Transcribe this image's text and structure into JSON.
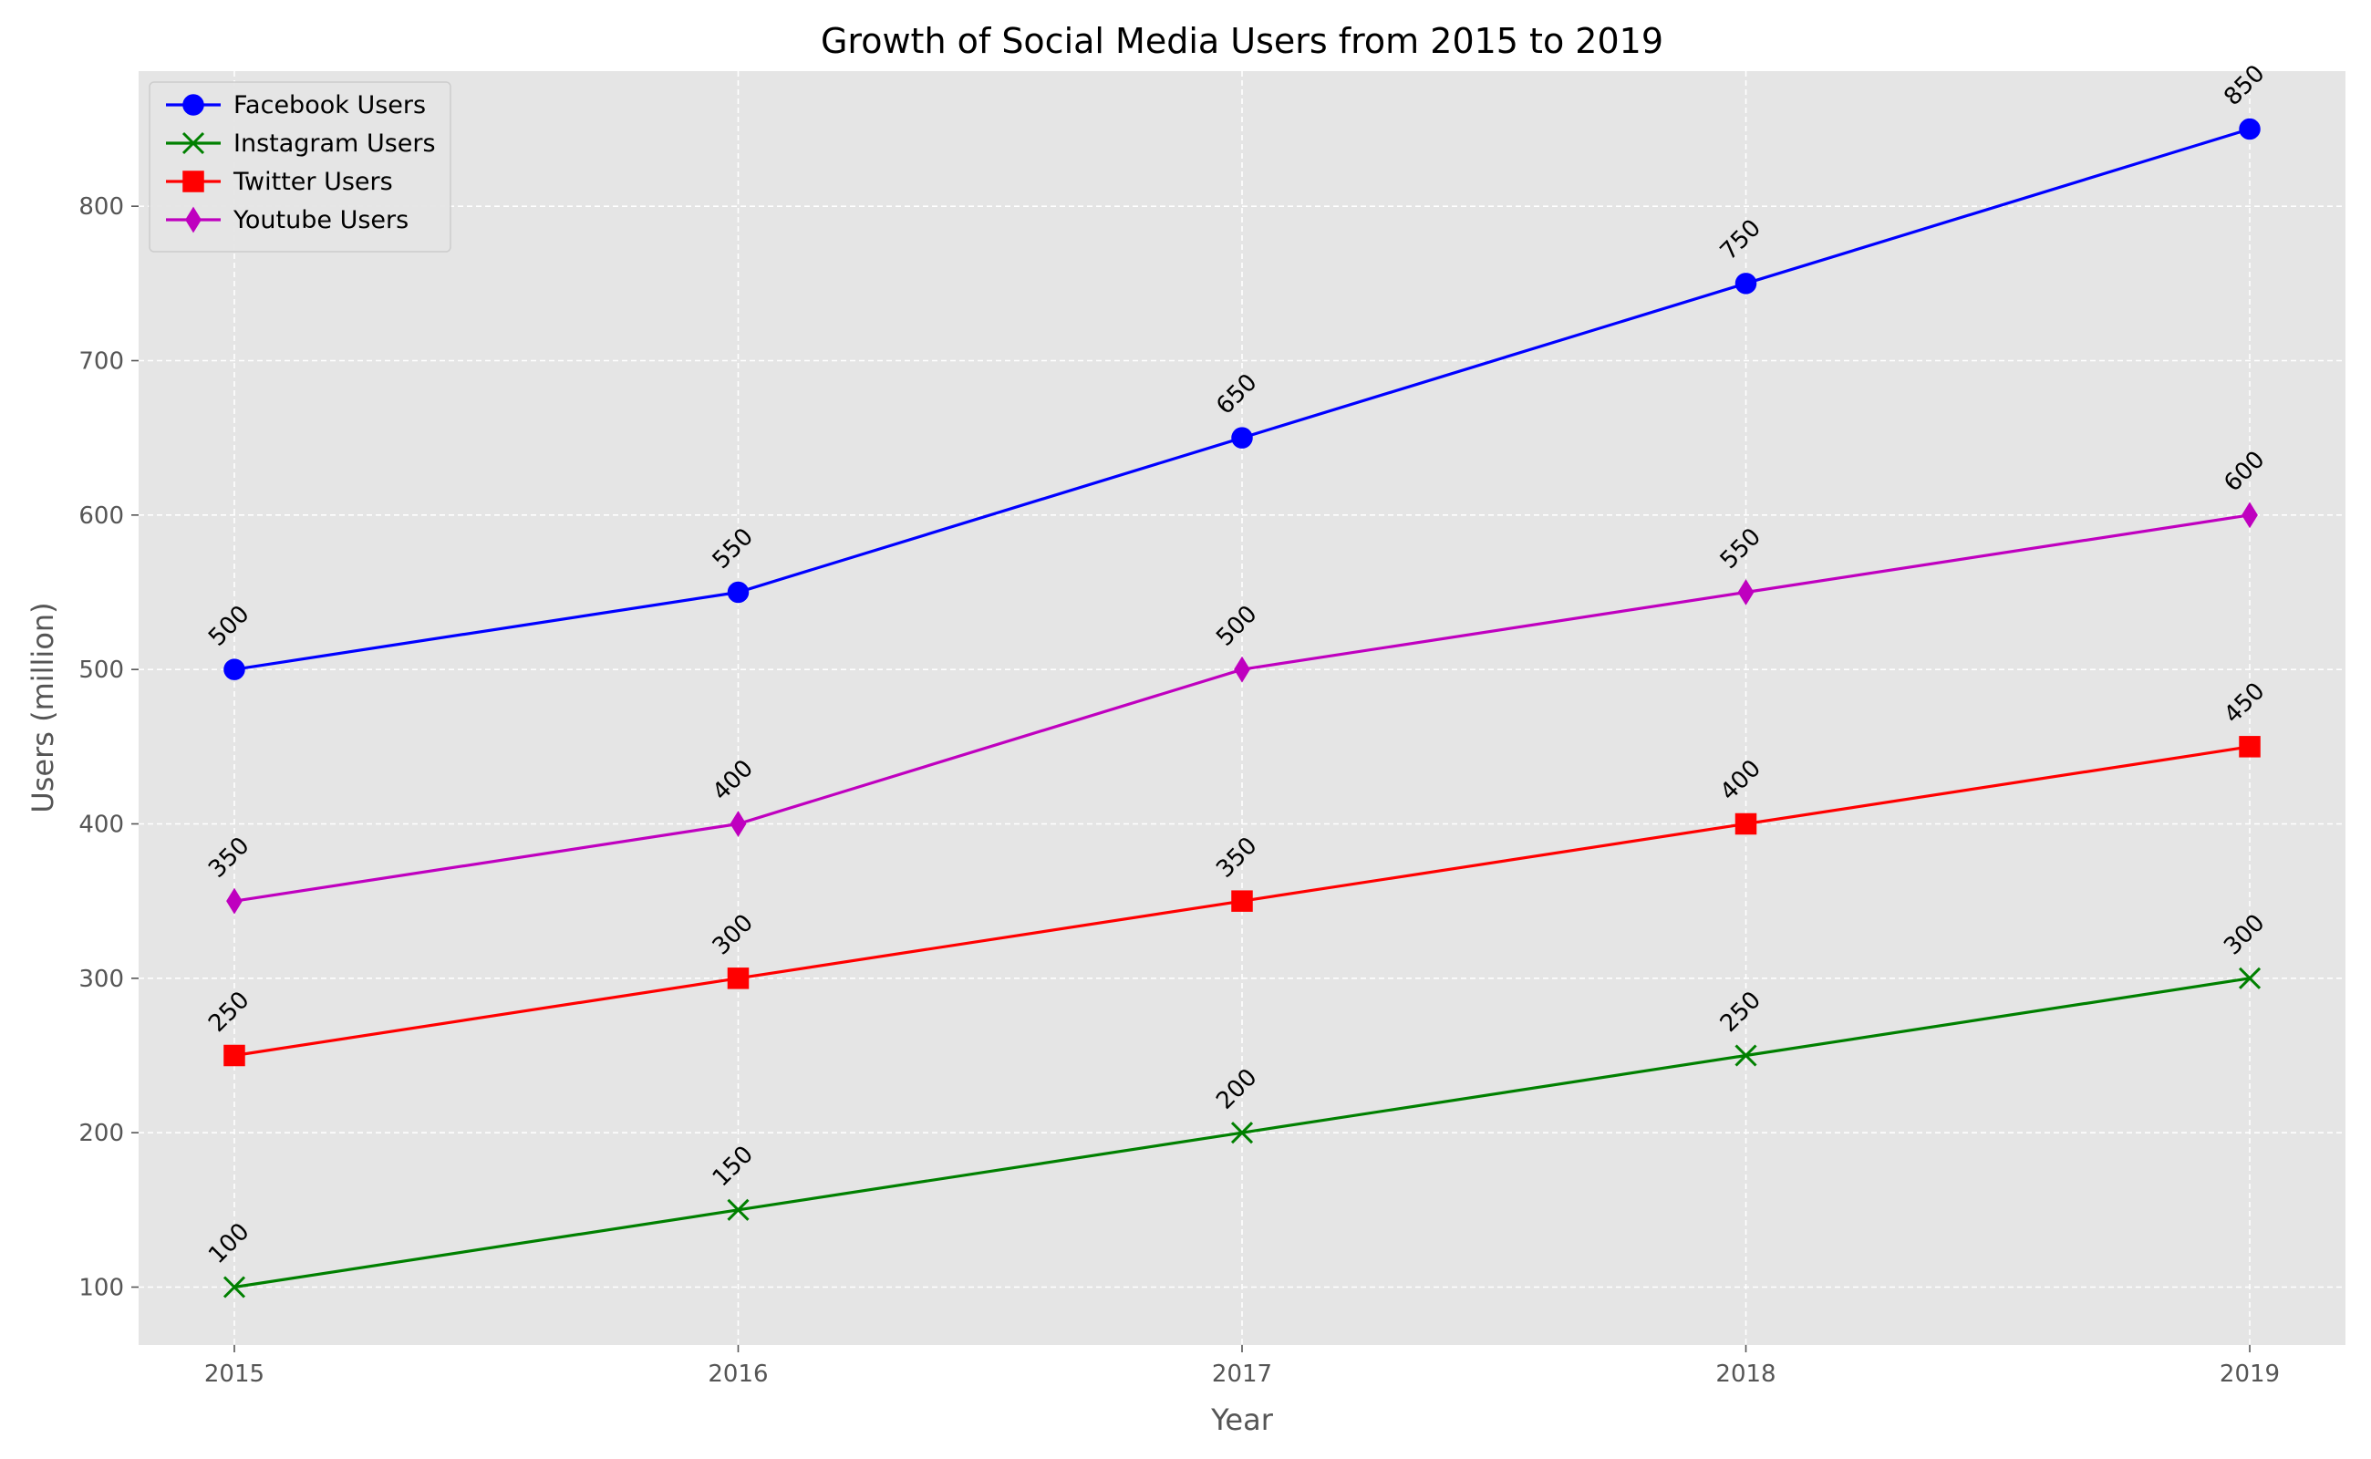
{
  "chart_data": {
    "type": "line",
    "title": "Growth of Social Media Users from 2015 to 2019",
    "xlabel": "Year",
    "ylabel": "Users (million)",
    "x": [
      2015,
      2016,
      2017,
      2018,
      2019
    ],
    "x_tick_labels": [
      "2015",
      "2016",
      "2017",
      "2018",
      "2019"
    ],
    "y_ticks": [
      100,
      200,
      300,
      400,
      500,
      600,
      700,
      800
    ],
    "y_tick_labels": [
      "100",
      "200",
      "300",
      "400",
      "500",
      "600",
      "700",
      "800"
    ],
    "xlim": [
      2014.81,
      2019.19
    ],
    "ylim": [
      62.5,
      887.5
    ],
    "grid": true,
    "legend_position": "top-left",
    "background_color": "#e5e5e5",
    "series": [
      {
        "name": "Facebook Users",
        "values": [
          500,
          550,
          650,
          750,
          850
        ],
        "labels": [
          "500",
          "550",
          "650",
          "750",
          "850"
        ],
        "color": "#0000ff",
        "marker": "circle"
      },
      {
        "name": "Instagram Users",
        "values": [
          100,
          150,
          200,
          250,
          300
        ],
        "labels": [
          "100",
          "150",
          "200",
          "250",
          "300"
        ],
        "color": "#008000",
        "marker": "x"
      },
      {
        "name": "Twitter Users",
        "values": [
          250,
          300,
          350,
          400,
          450
        ],
        "labels": [
          "250",
          "300",
          "350",
          "400",
          "450"
        ],
        "color": "#ff0000",
        "marker": "square"
      },
      {
        "name": "Youtube Users",
        "values": [
          350,
          400,
          500,
          550,
          600
        ],
        "labels": [
          "350",
          "400",
          "500",
          "550",
          "600"
        ],
        "color": "#bf00bf",
        "marker": "thin-diamond"
      }
    ]
  }
}
